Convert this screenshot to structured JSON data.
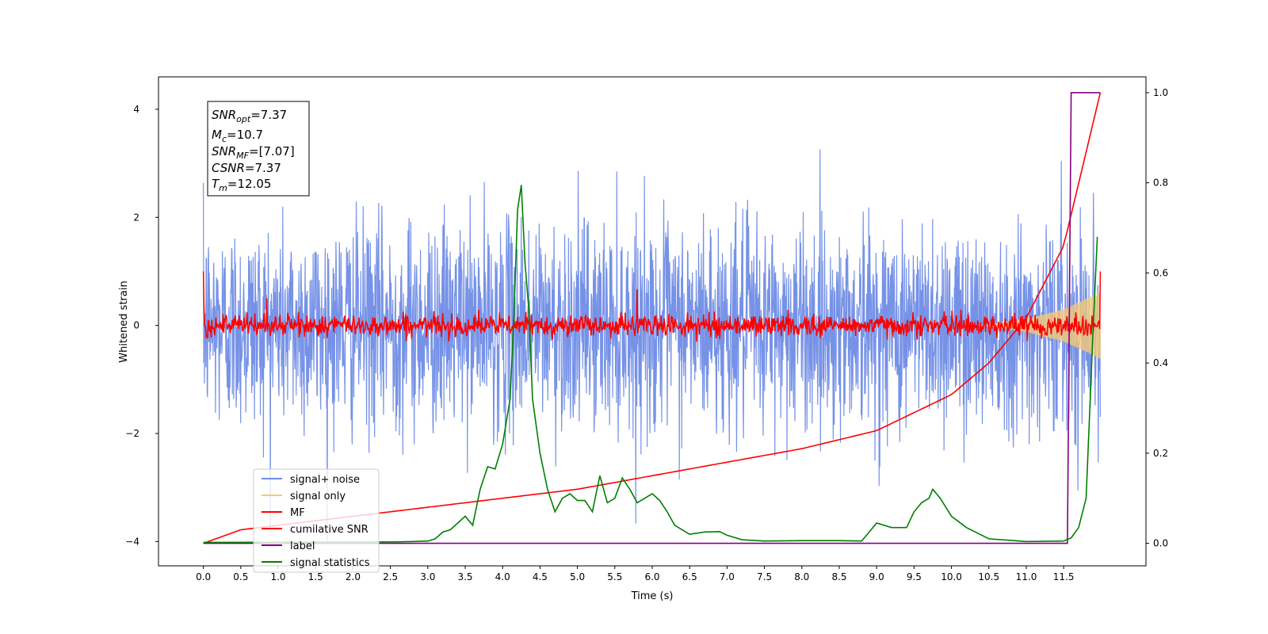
{
  "chart_data": {
    "type": "line",
    "title": "",
    "xlabel": "Time (s)",
    "ylabel": "Whitened strain",
    "xlim": [
      -0.6,
      12.6
    ],
    "ylim": [
      -4.45,
      4.6
    ],
    "y2lim": [
      -0.05,
      1.035
    ],
    "grid": false,
    "legend_position": "lower-left",
    "x_ticks": [
      "0.0",
      "0.5",
      "1.0",
      "1.5",
      "2.0",
      "2.5",
      "3.0",
      "3.5",
      "4.0",
      "4.5",
      "5.0",
      "5.5",
      "6.0",
      "6.5",
      "7.0",
      "7.5",
      "8.0",
      "8.5",
      "9.0",
      "9.5",
      "10.0",
      "10.5",
      "11.0",
      "11.5"
    ],
    "y_ticks": [
      "4",
      "2",
      "0",
      "−2",
      "−4"
    ],
    "y2_ticks": [
      "1.0",
      "0.8",
      "0.6",
      "0.4",
      "0.2",
      "0.0"
    ],
    "annotation": {
      "snr_opt_main": "SNR",
      "snr_opt_sub": "opt",
      "snr_opt_value": "=7.37",
      "mc_main": "M",
      "mc_sub": "c",
      "mc_value": "=10.7",
      "snr_mf_main": "SNR",
      "snr_mf_sub": "MF",
      "snr_mf_value": "=[7.07]",
      "csnr_main": "CSNR",
      "csnr_value": "=7.37",
      "tm_main": "T",
      "tm_sub": "m",
      "tm_value": "=12.05"
    },
    "series": [
      {
        "name": "signal+ noise",
        "axis": "left",
        "color": "#6f8ce6",
        "description_of_values": "noise",
        "amplitude_std": 0.95,
        "t_range": [
          0.0,
          11.99
        ]
      },
      {
        "name": "signal only",
        "axis": "left",
        "color": "#f5c878",
        "t_range": [
          0.0,
          11.99
        ],
        "envelope": [
          [
            10.5,
            0.02
          ],
          [
            11.0,
            0.12
          ],
          [
            11.5,
            0.3
          ],
          [
            11.99,
            0.62
          ]
        ]
      },
      {
        "name": "MF",
        "axis": "left",
        "color": "#ff0000",
        "t_range": [
          0.0,
          11.99
        ],
        "start_value": 1.0,
        "end_value": 1.0,
        "spikes": [
          [
            0.85,
            0.5
          ],
          [
            5.8,
            0.67
          ]
        ]
      },
      {
        "name": "cumilative SNR",
        "axis": "right",
        "color": "#ff0000",
        "x": [
          0.0,
          0.5,
          1.0,
          2.0,
          3.0,
          4.0,
          5.0,
          6.0,
          7.0,
          8.0,
          9.0,
          10.0,
          10.5,
          11.0,
          11.5,
          11.99
        ],
        "y": [
          0.0,
          0.03,
          0.04,
          0.06,
          0.08,
          0.1,
          0.12,
          0.15,
          0.18,
          0.21,
          0.25,
          0.33,
          0.4,
          0.5,
          0.66,
          1.0
        ]
      },
      {
        "name": "label",
        "axis": "right",
        "color": "#800080",
        "x": [
          0.0,
          11.55,
          11.6,
          11.99
        ],
        "y": [
          0.0,
          0.0,
          1.0,
          1.0
        ]
      },
      {
        "name": "signal statistics",
        "axis": "right",
        "color": "#008000",
        "x": [
          0.0,
          2.5,
          2.8,
          3.0,
          3.1,
          3.2,
          3.3,
          3.4,
          3.5,
          3.6,
          3.7,
          3.8,
          3.9,
          4.0,
          4.1,
          4.15,
          4.2,
          4.25,
          4.3,
          4.35,
          4.4,
          4.5,
          4.6,
          4.7,
          4.8,
          4.9,
          5.0,
          5.1,
          5.2,
          5.3,
          5.4,
          5.5,
          5.6,
          5.7,
          5.8,
          5.9,
          6.0,
          6.1,
          6.2,
          6.3,
          6.5,
          6.7,
          6.9,
          7.0,
          7.2,
          7.5,
          8.0,
          8.5,
          8.8,
          9.0,
          9.2,
          9.4,
          9.5,
          9.6,
          9.7,
          9.75,
          9.85,
          10.0,
          10.2,
          10.5,
          11.0,
          11.5,
          11.6,
          11.7,
          11.8,
          11.9,
          11.95
        ],
        "y": [
          0.002,
          0.003,
          0.004,
          0.005,
          0.01,
          0.025,
          0.03,
          0.045,
          0.06,
          0.04,
          0.12,
          0.17,
          0.165,
          0.22,
          0.32,
          0.5,
          0.74,
          0.795,
          0.62,
          0.52,
          0.32,
          0.2,
          0.12,
          0.07,
          0.1,
          0.11,
          0.095,
          0.095,
          0.07,
          0.15,
          0.09,
          0.1,
          0.145,
          0.12,
          0.09,
          0.1,
          0.11,
          0.095,
          0.07,
          0.04,
          0.02,
          0.025,
          0.026,
          0.018,
          0.008,
          0.005,
          0.006,
          0.006,
          0.005,
          0.045,
          0.035,
          0.035,
          0.07,
          0.09,
          0.1,
          0.12,
          0.1,
          0.06,
          0.035,
          0.01,
          0.004,
          0.005,
          0.012,
          0.035,
          0.1,
          0.5,
          0.68
        ]
      }
    ]
  }
}
